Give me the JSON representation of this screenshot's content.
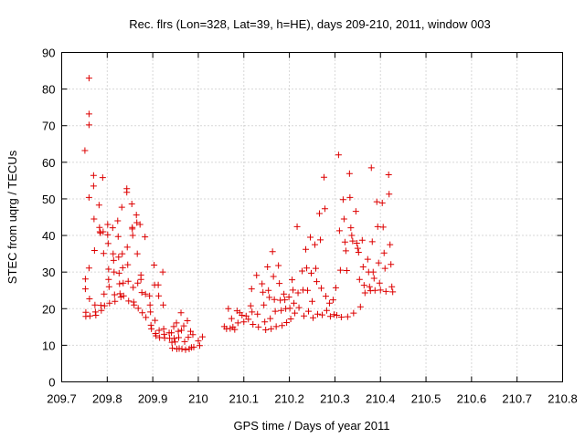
{
  "chart_data": {
    "type": "scatter",
    "title": "Rec. flrs (Lon=328, Lat=39, h=HE), days 209-210, 2011, window 003",
    "xlabel": "GPS time / Days of year 2011",
    "ylabel": "STEC from uqrg / TECUs",
    "xlim": [
      209.7,
      210.8
    ],
    "ylim": [
      0,
      90
    ],
    "x_ticks": [
      "209.7",
      "209.8",
      "209.9",
      "210",
      "210.1",
      "210.2",
      "210.3",
      "210.4",
      "210.5",
      "210.6",
      "210.7",
      "210.8"
    ],
    "y_ticks": [
      "0",
      "10",
      "20",
      "30",
      "40",
      "50",
      "60",
      "70",
      "80",
      "90"
    ],
    "grid": true,
    "colors": {
      "marker": "#dd0000"
    },
    "marker": "plus",
    "points": [
      [
        209.751,
        63.2
      ],
      [
        209.752,
        28.1
      ],
      [
        209.752,
        25.4
      ],
      [
        209.753,
        19.0
      ],
      [
        209.753,
        17.9
      ],
      [
        209.76,
        83.0
      ],
      [
        209.76,
        73.2
      ],
      [
        209.76,
        70.2
      ],
      [
        209.76,
        50.4
      ],
      [
        209.76,
        31.1
      ],
      [
        209.761,
        22.7
      ],
      [
        209.762,
        18.0
      ],
      [
        209.77,
        56.4
      ],
      [
        209.77,
        53.5
      ],
      [
        209.771,
        44.5
      ],
      [
        209.772,
        35.9
      ],
      [
        209.773,
        21.0
      ],
      [
        209.774,
        19.1
      ],
      [
        209.775,
        18.2
      ],
      [
        209.782,
        48.3
      ],
      [
        209.783,
        42.2
      ],
      [
        209.784,
        41.0
      ],
      [
        209.785,
        40.7
      ],
      [
        209.786,
        20.9
      ],
      [
        209.787,
        19.5
      ],
      [
        209.79,
        55.8
      ],
      [
        209.791,
        41.0
      ],
      [
        209.792,
        35.1
      ],
      [
        209.793,
        24.0
      ],
      [
        209.794,
        20.8
      ],
      [
        209.801,
        43.0
      ],
      [
        209.801,
        40.2
      ],
      [
        209.802,
        37.8
      ],
      [
        209.803,
        30.8
      ],
      [
        209.803,
        28.0
      ],
      [
        209.804,
        26.0
      ],
      [
        209.805,
        21.5
      ],
      [
        209.812,
        42.1
      ],
      [
        209.813,
        35.0
      ],
      [
        209.814,
        33.2
      ],
      [
        209.815,
        30.0
      ],
      [
        209.816,
        23.8
      ],
      [
        209.817,
        22.0
      ],
      [
        209.823,
        44.0
      ],
      [
        209.824,
        39.7
      ],
      [
        209.825,
        34.1
      ],
      [
        209.826,
        29.7
      ],
      [
        209.827,
        26.8
      ],
      [
        209.828,
        24.1
      ],
      [
        209.83,
        23.2
      ],
      [
        209.832,
        47.7
      ],
      [
        209.833,
        35.0
      ],
      [
        209.834,
        31.2
      ],
      [
        209.835,
        27.0
      ],
      [
        209.836,
        23.5
      ],
      [
        209.843,
        52.8
      ],
      [
        209.843,
        51.8
      ],
      [
        209.844,
        36.8
      ],
      [
        209.845,
        32.0
      ],
      [
        209.846,
        27.5
      ],
      [
        209.847,
        22.1
      ],
      [
        209.854,
        48.6
      ],
      [
        209.855,
        42.2
      ],
      [
        209.855,
        41.8
      ],
      [
        209.856,
        40.0
      ],
      [
        209.857,
        25.8
      ],
      [
        209.858,
        21.8
      ],
      [
        209.859,
        21.0
      ],
      [
        209.864,
        45.6
      ],
      [
        209.865,
        43.5
      ],
      [
        209.866,
        35.0
      ],
      [
        209.867,
        27.0
      ],
      [
        209.868,
        20.1
      ],
      [
        209.872,
        43.0
      ],
      [
        209.874,
        28.0
      ],
      [
        209.874,
        29.2
      ],
      [
        209.876,
        24.4
      ],
      [
        209.877,
        18.9
      ],
      [
        209.883,
        39.6
      ],
      [
        209.884,
        24.0
      ],
      [
        209.885,
        17.6
      ],
      [
        209.893,
        23.5
      ],
      [
        209.894,
        21.0
      ],
      [
        209.895,
        19.1
      ],
      [
        209.896,
        15.5
      ],
      [
        209.897,
        14.5
      ],
      [
        209.903,
        31.9
      ],
      [
        209.904,
        26.5
      ],
      [
        209.905,
        16.8
      ],
      [
        209.906,
        13.2
      ],
      [
        209.907,
        12.6
      ],
      [
        209.912,
        26.5
      ],
      [
        209.913,
        23.5
      ],
      [
        209.914,
        14.1
      ],
      [
        209.915,
        12.1
      ],
      [
        209.922,
        30.0
      ],
      [
        209.923,
        21.0
      ],
      [
        209.924,
        14.5
      ],
      [
        209.925,
        13.0
      ],
      [
        209.926,
        12.0
      ],
      [
        209.936,
        13.4
      ],
      [
        209.937,
        11.9
      ],
      [
        209.941,
        13.4
      ],
      [
        209.942,
        10.8
      ],
      [
        209.943,
        9.2
      ],
      [
        209.946,
        15.1
      ],
      [
        209.947,
        11.9
      ],
      [
        209.949,
        10.9
      ],
      [
        209.952,
        16.1
      ],
      [
        209.953,
        9.0
      ],
      [
        209.956,
        13.8
      ],
      [
        209.957,
        12.1
      ],
      [
        209.958,
        9.1
      ],
      [
        209.962,
        18.9
      ],
      [
        209.963,
        14.1
      ],
      [
        209.964,
        9.0
      ],
      [
        209.968,
        15.3
      ],
      [
        209.97,
        11.0
      ],
      [
        209.972,
        8.8
      ],
      [
        209.976,
        16.7
      ],
      [
        209.978,
        12.2
      ],
      [
        209.98,
        9.0
      ],
      [
        209.983,
        13.8
      ],
      [
        209.985,
        9.4
      ],
      [
        209.988,
        12.9
      ],
      [
        209.99,
        9.5
      ],
      [
        210.0,
        11.2
      ],
      [
        210.003,
        9.9
      ],
      [
        210.009,
        12.3
      ],
      [
        210.057,
        15.1
      ],
      [
        210.062,
        14.5
      ],
      [
        210.066,
        20.0
      ],
      [
        210.07,
        14.6
      ],
      [
        210.073,
        17.3
      ],
      [
        210.076,
        15.0
      ],
      [
        210.08,
        14.3
      ],
      [
        210.085,
        19.4
      ],
      [
        210.087,
        16.1
      ],
      [
        210.091,
        18.9
      ],
      [
        210.096,
        18.2
      ],
      [
        210.1,
        16.4
      ],
      [
        210.105,
        18.0
      ],
      [
        210.11,
        17.1
      ],
      [
        210.115,
        20.8
      ],
      [
        210.117,
        25.4
      ],
      [
        210.118,
        19.1
      ],
      [
        210.12,
        15.7
      ],
      [
        210.128,
        29.1
      ],
      [
        210.13,
        18.5
      ],
      [
        210.132,
        15.0
      ],
      [
        210.14,
        26.8
      ],
      [
        210.142,
        24.5
      ],
      [
        210.144,
        21.0
      ],
      [
        210.146,
        16.4
      ],
      [
        210.148,
        14.2
      ],
      [
        210.152,
        31.4
      ],
      [
        210.154,
        25.0
      ],
      [
        210.156,
        23.1
      ],
      [
        210.158,
        17.3
      ],
      [
        210.16,
        14.5
      ],
      [
        210.163,
        35.6
      ],
      [
        210.165,
        28.8
      ],
      [
        210.167,
        22.5
      ],
      [
        210.169,
        19.3
      ],
      [
        210.171,
        15.1
      ],
      [
        210.176,
        31.8
      ],
      [
        210.178,
        26.9
      ],
      [
        210.18,
        22.3
      ],
      [
        210.182,
        19.5
      ],
      [
        210.184,
        15.4
      ],
      [
        210.188,
        24.0
      ],
      [
        210.19,
        22.4
      ],
      [
        210.192,
        20.0
      ],
      [
        210.194,
        16.2
      ],
      [
        210.199,
        23.2
      ],
      [
        210.201,
        20.1
      ],
      [
        210.203,
        17.2
      ],
      [
        210.206,
        27.9
      ],
      [
        210.208,
        25.1
      ],
      [
        210.21,
        21.5
      ],
      [
        210.212,
        18.8
      ],
      [
        210.217,
        42.4
      ],
      [
        210.219,
        24.3
      ],
      [
        210.221,
        20.3
      ],
      [
        210.228,
        30.3
      ],
      [
        210.23,
        25.1
      ],
      [
        210.232,
        18.0
      ],
      [
        210.236,
        36.2
      ],
      [
        210.238,
        31.1
      ],
      [
        210.24,
        25.0
      ],
      [
        210.242,
        19.3
      ],
      [
        210.246,
        39.5
      ],
      [
        210.248,
        29.7
      ],
      [
        210.25,
        22.0
      ],
      [
        210.252,
        17.5
      ],
      [
        210.256,
        37.5
      ],
      [
        210.258,
        31.0
      ],
      [
        210.26,
        27.4
      ],
      [
        210.262,
        18.5
      ],
      [
        210.266,
        46.0
      ],
      [
        210.268,
        38.8
      ],
      [
        210.27,
        25.6
      ],
      [
        210.272,
        18.3
      ],
      [
        210.276,
        55.9
      ],
      [
        210.278,
        47.3
      ],
      [
        210.28,
        23.4
      ],
      [
        210.282,
        19.5
      ],
      [
        210.288,
        21.5
      ],
      [
        210.29,
        17.9
      ],
      [
        210.296,
        22.4
      ],
      [
        210.298,
        18.4
      ],
      [
        210.302,
        25.7
      ],
      [
        210.304,
        18.2
      ],
      [
        210.308,
        62.0
      ],
      [
        210.31,
        41.3
      ],
      [
        210.312,
        30.5
      ],
      [
        210.314,
        17.7
      ],
      [
        210.318,
        49.8
      ],
      [
        210.32,
        44.5
      ],
      [
        210.322,
        38.2
      ],
      [
        210.324,
        35.8
      ],
      [
        210.326,
        30.4
      ],
      [
        210.328,
        17.8
      ],
      [
        210.332,
        56.9
      ],
      [
        210.333,
        50.4
      ],
      [
        210.335,
        42.1
      ],
      [
        210.337,
        40.0
      ],
      [
        210.339,
        38.5
      ],
      [
        210.341,
        18.8
      ],
      [
        210.346,
        46.6
      ],
      [
        210.348,
        37.9
      ],
      [
        210.35,
        36.5
      ],
      [
        210.352,
        35.4
      ],
      [
        210.354,
        28.0
      ],
      [
        210.356,
        20.5
      ],
      [
        210.36,
        38.7
      ],
      [
        210.362,
        31.4
      ],
      [
        210.364,
        26.4
      ],
      [
        210.366,
        24.3
      ],
      [
        210.372,
        33.5
      ],
      [
        210.374,
        30.0
      ],
      [
        210.376,
        26.0
      ],
      [
        210.378,
        24.9
      ],
      [
        210.38,
        58.5
      ],
      [
        210.382,
        38.3
      ],
      [
        210.384,
        30.0
      ],
      [
        210.386,
        28.3
      ],
      [
        210.388,
        25.0
      ],
      [
        210.392,
        49.2
      ],
      [
        210.394,
        42.4
      ],
      [
        210.396,
        32.5
      ],
      [
        210.398,
        27.0
      ],
      [
        210.4,
        25.1
      ],
      [
        210.404,
        48.9
      ],
      [
        210.406,
        42.3
      ],
      [
        210.408,
        35.2
      ],
      [
        210.41,
        31.0
      ],
      [
        210.412,
        24.7
      ],
      [
        210.418,
        56.6
      ],
      [
        210.419,
        51.3
      ],
      [
        210.421,
        37.5
      ],
      [
        210.423,
        32.1
      ],
      [
        210.425,
        26.0
      ],
      [
        210.427,
        24.6
      ]
    ]
  }
}
